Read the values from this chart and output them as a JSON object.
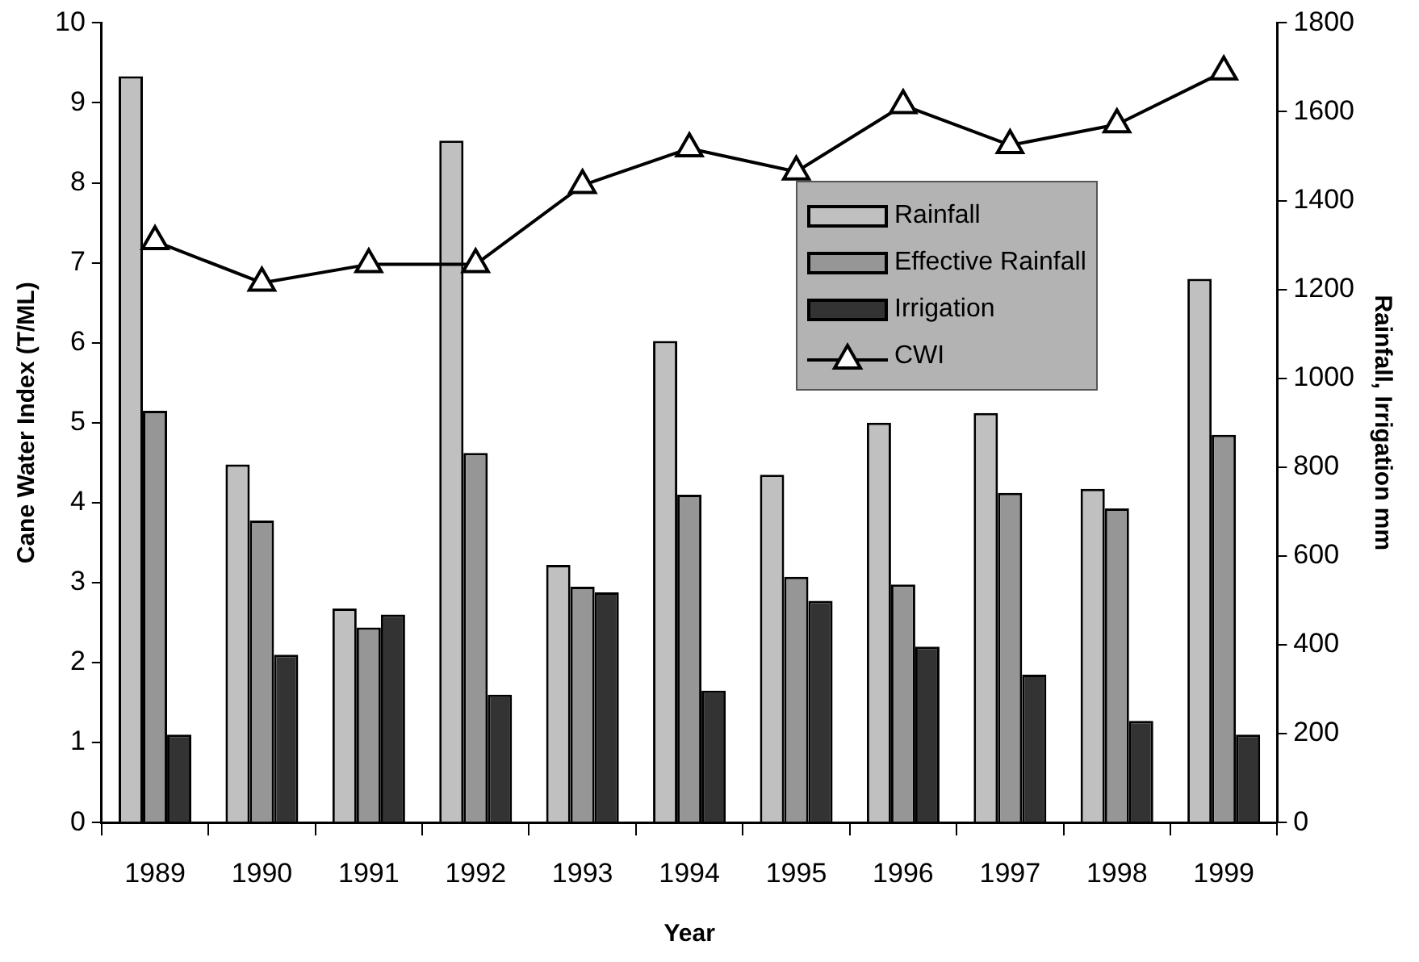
{
  "chart_data": {
    "type": "bar",
    "xlabel": "Year",
    "ylabel": "Cane Water Index (T/ML)",
    "y2label": "Rainfall, Irrigation mm",
    "categories": [
      "1989",
      "1990",
      "1991",
      "1992",
      "1993",
      "1994",
      "1995",
      "1996",
      "1997",
      "1998",
      "1999"
    ],
    "series": [
      {
        "name": "Rainfall",
        "axis": "y2",
        "color": "#c0c0c0",
        "values": [
          1680,
          806,
          482,
          1535,
          580,
          1084,
          783,
          900,
          922,
          751,
          1224
        ]
      },
      {
        "name": "Effective Rainfall",
        "axis": "y2",
        "color": "#969696",
        "values": [
          927,
          680,
          439,
          832,
          531,
          738,
          553,
          536,
          742,
          707,
          873
        ]
      },
      {
        "name": "Irrigation",
        "axis": "y2",
        "color": "#333333",
        "values": [
          198,
          378,
          468,
          288,
          518,
          297,
          499,
          396,
          333,
          229,
          198
        ]
      },
      {
        "name": "CWI",
        "type": "line",
        "axis": "y",
        "color": "#000000",
        "values": [
          7.27,
          6.75,
          6.98,
          6.98,
          7.97,
          8.43,
          8.14,
          8.97,
          8.47,
          8.73,
          9.39
        ]
      }
    ],
    "ylim": [
      0,
      10
    ],
    "yticks": [
      0,
      1,
      2,
      3,
      4,
      5,
      6,
      7,
      8,
      9,
      10
    ],
    "y2lim": [
      0,
      1800
    ],
    "y2ticks": [
      0,
      200,
      400,
      600,
      800,
      1000,
      1200,
      1400,
      1600,
      1800
    ],
    "marker": "triangle",
    "line_style": "solid",
    "grid": false,
    "legend": "right"
  }
}
